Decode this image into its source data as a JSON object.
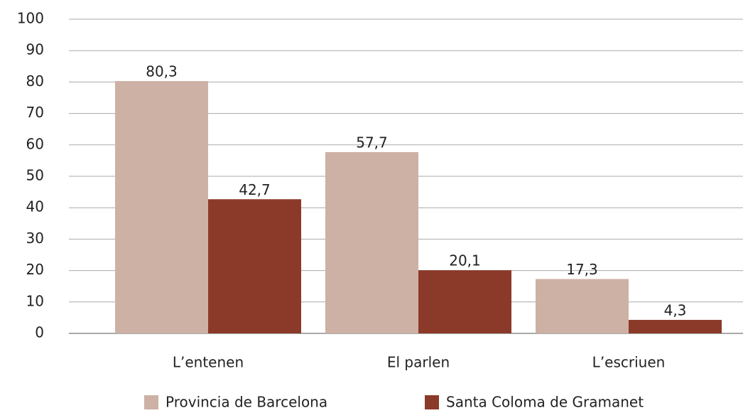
{
  "chart_data": {
    "type": "bar",
    "categories": [
      "L’entenen",
      "El parlen",
      "L’escriuen"
    ],
    "series": [
      {
        "name": "Provincia de Barcelona",
        "color": "#cdb1a5",
        "values": [
          80.3,
          57.7,
          17.3
        ],
        "value_labels": [
          "80,3",
          "57,7",
          "17,3"
        ]
      },
      {
        "name": "Santa Coloma de Gramanet",
        "color": "#8b3a2a",
        "values": [
          42.7,
          20.1,
          4.3
        ],
        "value_labels": [
          "42,7",
          "20,1",
          "4,3"
        ]
      }
    ],
    "ylim": [
      0,
      100
    ],
    "yticks": [
      0,
      10,
      20,
      30,
      40,
      50,
      60,
      70,
      80,
      90,
      100
    ],
    "grid": true,
    "legend": "bottom"
  }
}
